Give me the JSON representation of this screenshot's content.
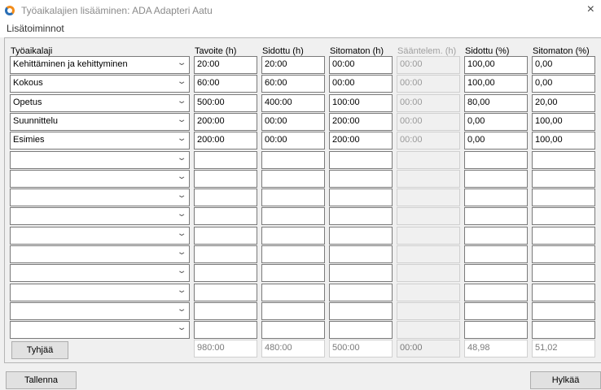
{
  "window": {
    "title": "Työaikalajien lisääminen: ADA Adapteri Aatu",
    "close_icon": "×"
  },
  "menu": {
    "label": "Lisätoiminnot"
  },
  "headers": [
    "Työaikalaji",
    "Tavoite (h)",
    "Sidottu (h)",
    "Sitomaton (h)",
    "Sääntelem. (h)",
    "Sidottu (%)",
    "Sitomaton (%)"
  ],
  "rows": [
    [
      "Kehittäminen ja kehittyminen",
      "20:00",
      "20:00",
      "00:00",
      "00:00",
      "100,00",
      "0,00"
    ],
    [
      "Kokous",
      "60:00",
      "60:00",
      "00:00",
      "00:00",
      "100,00",
      "0,00"
    ],
    [
      "Opetus",
      "500:00",
      "400:00",
      "100:00",
      "00:00",
      "80,00",
      "20,00"
    ],
    [
      "Suunnittelu",
      "200:00",
      "00:00",
      "200:00",
      "00:00",
      "0,00",
      "100,00"
    ],
    [
      "Esimies",
      "200:00",
      "00:00",
      "200:00",
      "00:00",
      "0,00",
      "100,00"
    ],
    [
      "",
      "",
      "",
      "",
      "",
      "",
      ""
    ],
    [
      "",
      "",
      "",
      "",
      "",
      "",
      ""
    ],
    [
      "",
      "",
      "",
      "",
      "",
      "",
      ""
    ],
    [
      "",
      "",
      "",
      "",
      "",
      "",
      ""
    ],
    [
      "",
      "",
      "",
      "",
      "",
      "",
      ""
    ],
    [
      "",
      "",
      "",
      "",
      "",
      "",
      ""
    ],
    [
      "",
      "",
      "",
      "",
      "",
      "",
      ""
    ],
    [
      "",
      "",
      "",
      "",
      "",
      "",
      ""
    ],
    [
      "",
      "",
      "",
      "",
      "",
      "",
      ""
    ],
    [
      "",
      "",
      "",
      "",
      "",
      "",
      ""
    ]
  ],
  "totals": [
    "980:00",
    "480:00",
    "500:00",
    "00:00",
    "48,98",
    "51,02"
  ],
  "buttons": {
    "clear": "Tyhjää",
    "save": "Tallenna",
    "reject": "Hylkää"
  },
  "chevron": "⌄"
}
